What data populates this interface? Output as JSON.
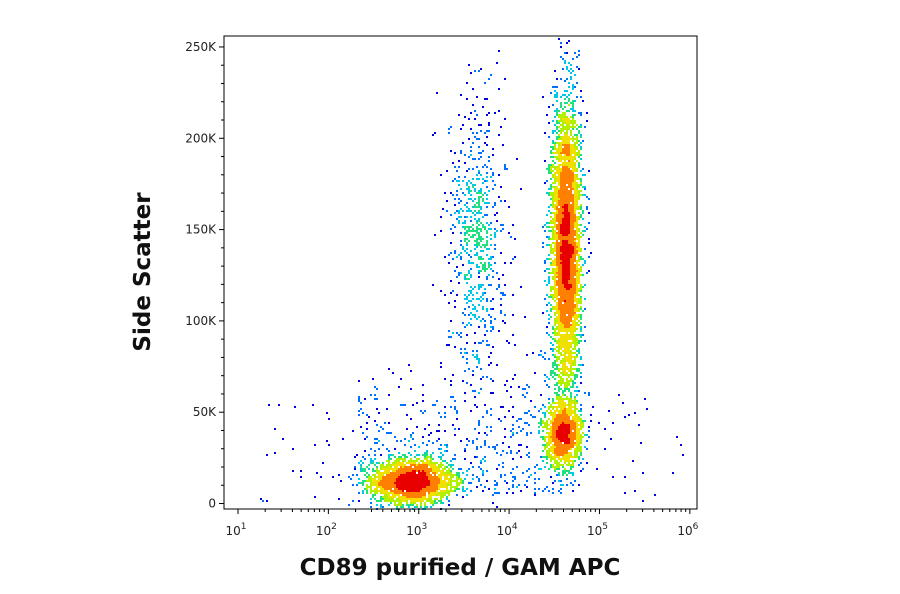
{
  "chart_data": {
    "type": "scatter",
    "rendering": "density-colored flow cytometry dot plot",
    "xlabel": "CD89 purified / GAM APC",
    "ylabel": "Side Scatter",
    "x_scale": "log",
    "xlim": [
      7,
      1200000
    ],
    "ylim": [
      -3000,
      256000
    ],
    "x_ticks": [
      {
        "base": "10",
        "exp": "1",
        "value": 10
      },
      {
        "base": "10",
        "exp": "2",
        "value": 100
      },
      {
        "base": "10",
        "exp": "3",
        "value": 1000
      },
      {
        "base": "10",
        "exp": "4",
        "value": 10000
      },
      {
        "base": "10",
        "exp": "5",
        "value": 100000
      },
      {
        "base": "10",
        "exp": "6",
        "value": 1000000
      }
    ],
    "y_ticks": [
      {
        "label": "0",
        "value": 0
      },
      {
        "label": "50K",
        "value": 50000
      },
      {
        "label": "100K",
        "value": 100000
      },
      {
        "label": "150K",
        "value": 150000
      },
      {
        "label": "200K",
        "value": 200000
      },
      {
        "label": "250K",
        "value": 250000
      }
    ],
    "density_colors": [
      "#0000e0",
      "#0070ff",
      "#00c8e8",
      "#20e080",
      "#b0f000",
      "#f0e000",
      "#ff8000",
      "#e80000"
    ],
    "populations": [
      {
        "x_center": 850,
        "x_log_sd": 0.22,
        "y_center": 12000,
        "y_sd": 6000
      },
      {
        "x_center": 43000,
        "x_log_sd": 0.08,
        "y_center": 140000,
        "y_sd": 38000
      },
      {
        "x_center": 40000,
        "x_log_sd": 0.1,
        "y_center": 38000,
        "y_sd": 9000
      },
      {
        "x_center": 4500,
        "x_log_sd": 0.16,
        "y_center": 145000,
        "y_sd": 40000
      }
    ]
  }
}
